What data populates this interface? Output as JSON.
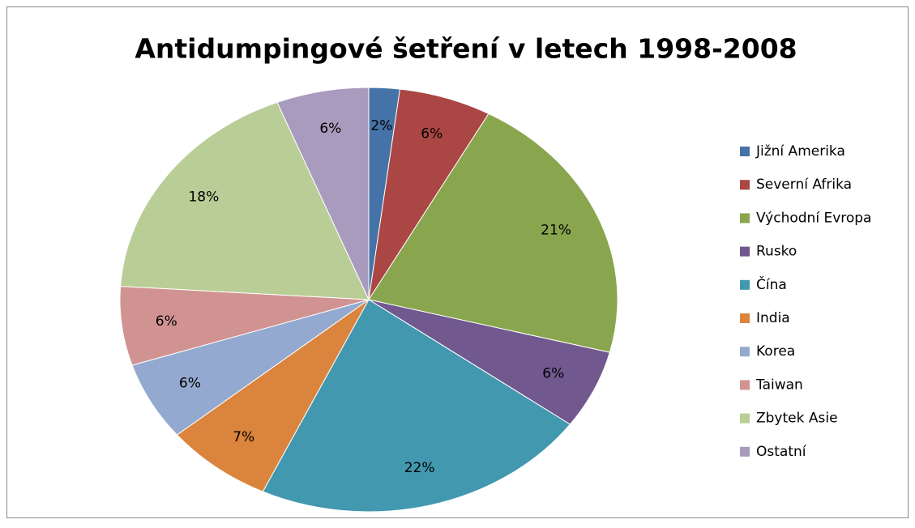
{
  "chart_data": {
    "type": "pie",
    "title": "Antidumpingové šetření v letech 1998-2008",
    "categories": [
      "Jižní Amerika",
      "Severní Afrika",
      "Východní Evropa",
      "Rusko",
      "Čína",
      "India",
      "Korea",
      "Taiwan",
      "Zbytek Asie",
      "Ostatní"
    ],
    "values": [
      2,
      6,
      21,
      6,
      22,
      7,
      6,
      6,
      18,
      6
    ],
    "value_labels": [
      "2%",
      "6%",
      "21%",
      "6%",
      "22%",
      "7%",
      "6%",
      "6%",
      "18%",
      "6%"
    ],
    "colors": [
      "#4572a7",
      "#aa4643",
      "#89a54e",
      "#71588f",
      "#4198af",
      "#db843d",
      "#93a9cf",
      "#d19392",
      "#b9cd96",
      "#a99bbd"
    ],
    "legend": "right"
  }
}
